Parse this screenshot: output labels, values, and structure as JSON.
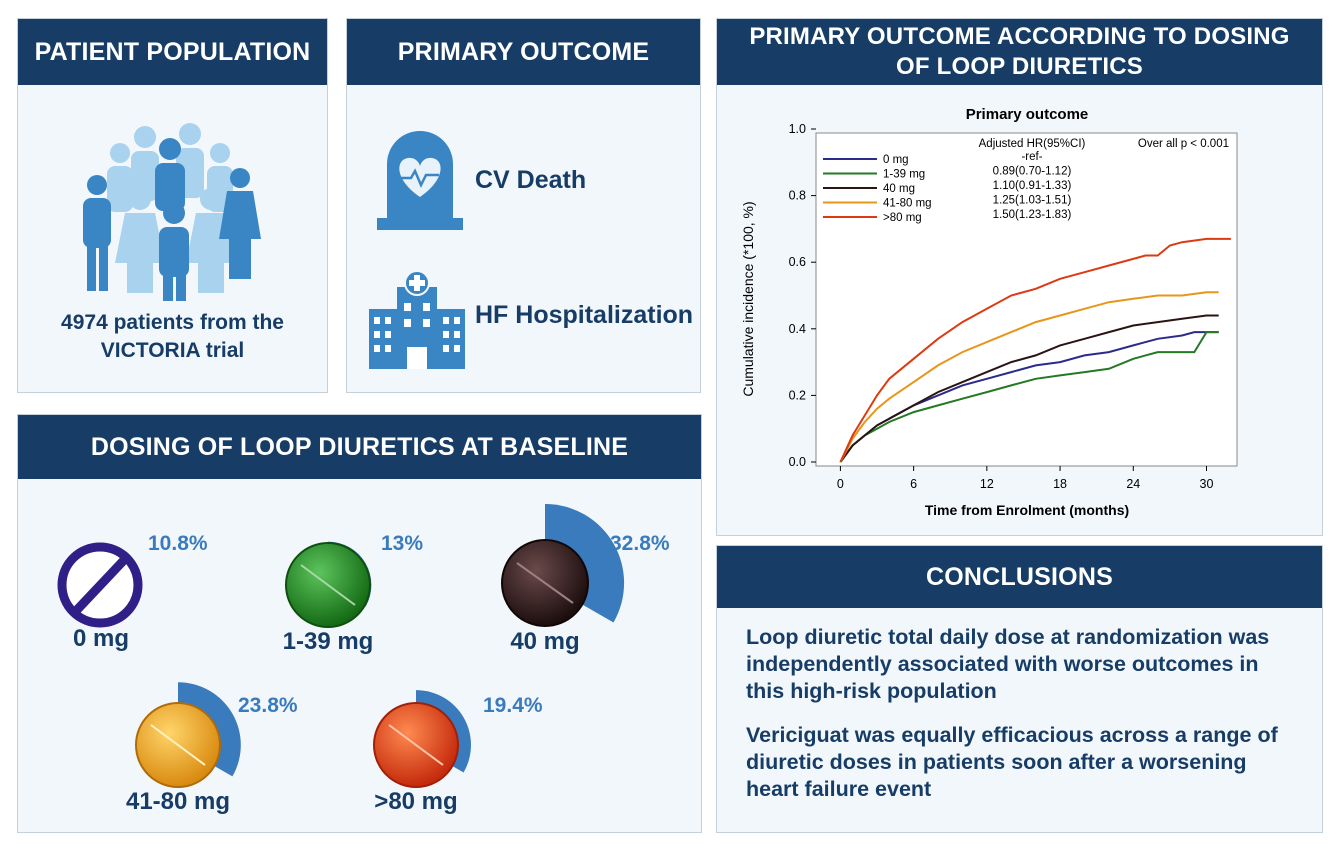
{
  "patient_population": {
    "title": "PATIENT POPULATION",
    "caption_line1": "4974 patients from the",
    "caption_line2": "VICTORIA trial",
    "icon": "people-group-icon"
  },
  "primary_outcome": {
    "title": "PRIMARY OUTCOME",
    "items": [
      {
        "label": "CV Death",
        "icon": "tombstone-heart-icon"
      },
      {
        "label": "HF Hospitalization",
        "icon": "hospital-icon"
      }
    ]
  },
  "dosing": {
    "title": "DOSING OF LOOP DIURETICS AT BASELINE",
    "groups": [
      {
        "dose": "0 mg",
        "percent_label": "10.8%",
        "percent": 10.8,
        "pill_color": "none-symbol"
      },
      {
        "dose": "1-39 mg",
        "percent_label": "13%",
        "percent": 13,
        "pill_color": "#2e8b2e"
      },
      {
        "dose": "40 mg",
        "percent_label": "32.8%",
        "percent": 32.8,
        "pill_color": "#3a2626"
      },
      {
        "dose": "41-80 mg",
        "percent_label": "23.8%",
        "percent": 23.8,
        "pill_color": "#e8a820"
      },
      {
        "dose": ">80 mg",
        "percent_label": "19.4%",
        "percent": 19.4,
        "pill_color": "#e0441c"
      }
    ]
  },
  "km_panel": {
    "title_line1": "PRIMARY OUTCOME ACCORDING TO DOSING",
    "title_line2": "OF LOOP DIURETICS"
  },
  "chart_data": {
    "type": "line",
    "title": "Primary outcome",
    "xlabel": "Time from Enrolment (months)",
    "ylabel": "Cumulative incidence (*100, %)",
    "xlim": [
      -2,
      32.5
    ],
    "ylim": [
      0,
      1.0
    ],
    "xticks": [
      "0",
      "6",
      "12",
      "18",
      "24",
      "30"
    ],
    "yticks": [
      "0.0",
      "0.2",
      "0.4",
      "0.6",
      "0.8",
      "1.0"
    ],
    "hr_header": "Adjusted HR(95%CI)",
    "p_value": "Over all p < 0.001",
    "series": [
      {
        "name": "0 mg",
        "color": "#2b2b8c",
        "hr": "-ref-",
        "x": [
          0,
          1,
          2,
          3,
          4,
          6,
          8,
          10,
          12,
          14,
          16,
          18,
          20,
          22,
          24,
          26,
          28,
          29,
          30,
          31
        ],
        "y": [
          0,
          0.05,
          0.08,
          0.11,
          0.13,
          0.17,
          0.2,
          0.23,
          0.25,
          0.27,
          0.29,
          0.3,
          0.32,
          0.33,
          0.35,
          0.37,
          0.38,
          0.39,
          0.39,
          0.39
        ]
      },
      {
        "name": "1-39 mg",
        "color": "#237a23",
        "hr": "0.89(0.70-1.12)",
        "x": [
          0,
          1,
          2,
          3,
          4,
          6,
          8,
          10,
          12,
          14,
          16,
          18,
          20,
          22,
          24,
          26,
          28,
          29,
          30,
          31
        ],
        "y": [
          0,
          0.05,
          0.08,
          0.1,
          0.12,
          0.15,
          0.17,
          0.19,
          0.21,
          0.23,
          0.25,
          0.26,
          0.27,
          0.28,
          0.31,
          0.33,
          0.33,
          0.33,
          0.39,
          0.39
        ]
      },
      {
        "name": "40 mg",
        "color": "#2a1414",
        "hr": "1.10(0.91-1.33)",
        "x": [
          0,
          1,
          2,
          3,
          4,
          6,
          8,
          10,
          12,
          14,
          16,
          18,
          20,
          22,
          24,
          26,
          28,
          30,
          31
        ],
        "y": [
          0,
          0.05,
          0.08,
          0.11,
          0.13,
          0.17,
          0.21,
          0.24,
          0.27,
          0.3,
          0.32,
          0.35,
          0.37,
          0.39,
          0.41,
          0.42,
          0.43,
          0.44,
          0.44
        ]
      },
      {
        "name": "41-80 mg",
        "color": "#e8961a",
        "hr": "1.25(1.03-1.51)",
        "x": [
          0,
          1,
          2,
          3,
          4,
          6,
          8,
          10,
          12,
          14,
          16,
          18,
          20,
          22,
          24,
          26,
          28,
          30,
          31
        ],
        "y": [
          0,
          0.07,
          0.12,
          0.16,
          0.19,
          0.24,
          0.29,
          0.33,
          0.36,
          0.39,
          0.42,
          0.44,
          0.46,
          0.48,
          0.49,
          0.5,
          0.5,
          0.51,
          0.51
        ]
      },
      {
        "name": ">80 mg",
        "color": "#dd3a12",
        "hr": "1.50(1.23-1.83)",
        "x": [
          0,
          1,
          2,
          3,
          4,
          5,
          6,
          8,
          10,
          12,
          14,
          16,
          18,
          20,
          22,
          24,
          25,
          26,
          27,
          28,
          30,
          32
        ],
        "y": [
          0,
          0.08,
          0.14,
          0.2,
          0.25,
          0.28,
          0.31,
          0.37,
          0.42,
          0.46,
          0.5,
          0.52,
          0.55,
          0.57,
          0.59,
          0.61,
          0.62,
          0.62,
          0.65,
          0.66,
          0.67,
          0.67
        ]
      }
    ]
  },
  "conclusions": {
    "title": "CONCLUSIONS",
    "paragraph1": "Loop diuretic total daily dose at randomization was independently associated with worse outcomes in this high-risk population",
    "paragraph2": "Vericiguat was equally efficacious across a range of diuretic doses in patients soon after a worsening heart failure event"
  }
}
